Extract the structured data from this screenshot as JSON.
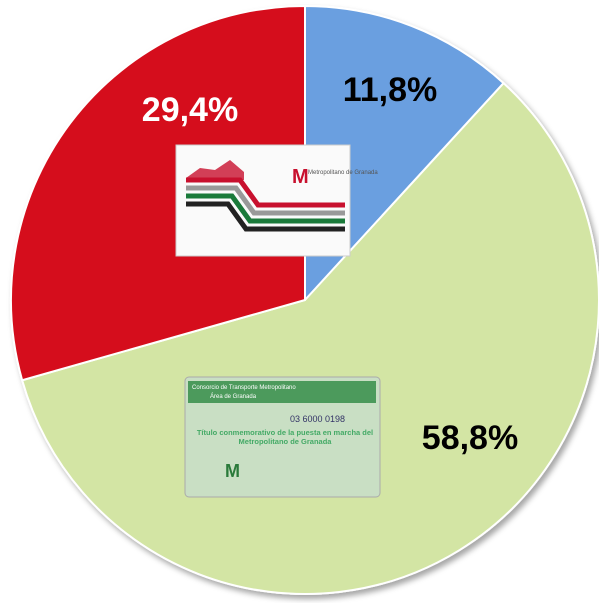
{
  "chart_data": {
    "type": "pie",
    "values": [
      11.8,
      58.8,
      29.4
    ],
    "value_labels": [
      "11,8%",
      "58,8%",
      "29,4%"
    ],
    "colors": [
      "#6a9fe0",
      "#d3e5a4",
      "#d5111b"
    ],
    "label_colors": [
      "#000000",
      "#000000",
      "#ffffff"
    ]
  },
  "images": [
    {
      "texts": [
        "M",
        "Metropolitano de Granada"
      ]
    },
    {
      "texts": [
        "Consorcio de Transporte Metropolitano",
        "Área de Granada",
        "03 6000 0198",
        "Título conmemorativo de la puesta en marcha del Metropolitano de Granada",
        "M"
      ]
    }
  ]
}
